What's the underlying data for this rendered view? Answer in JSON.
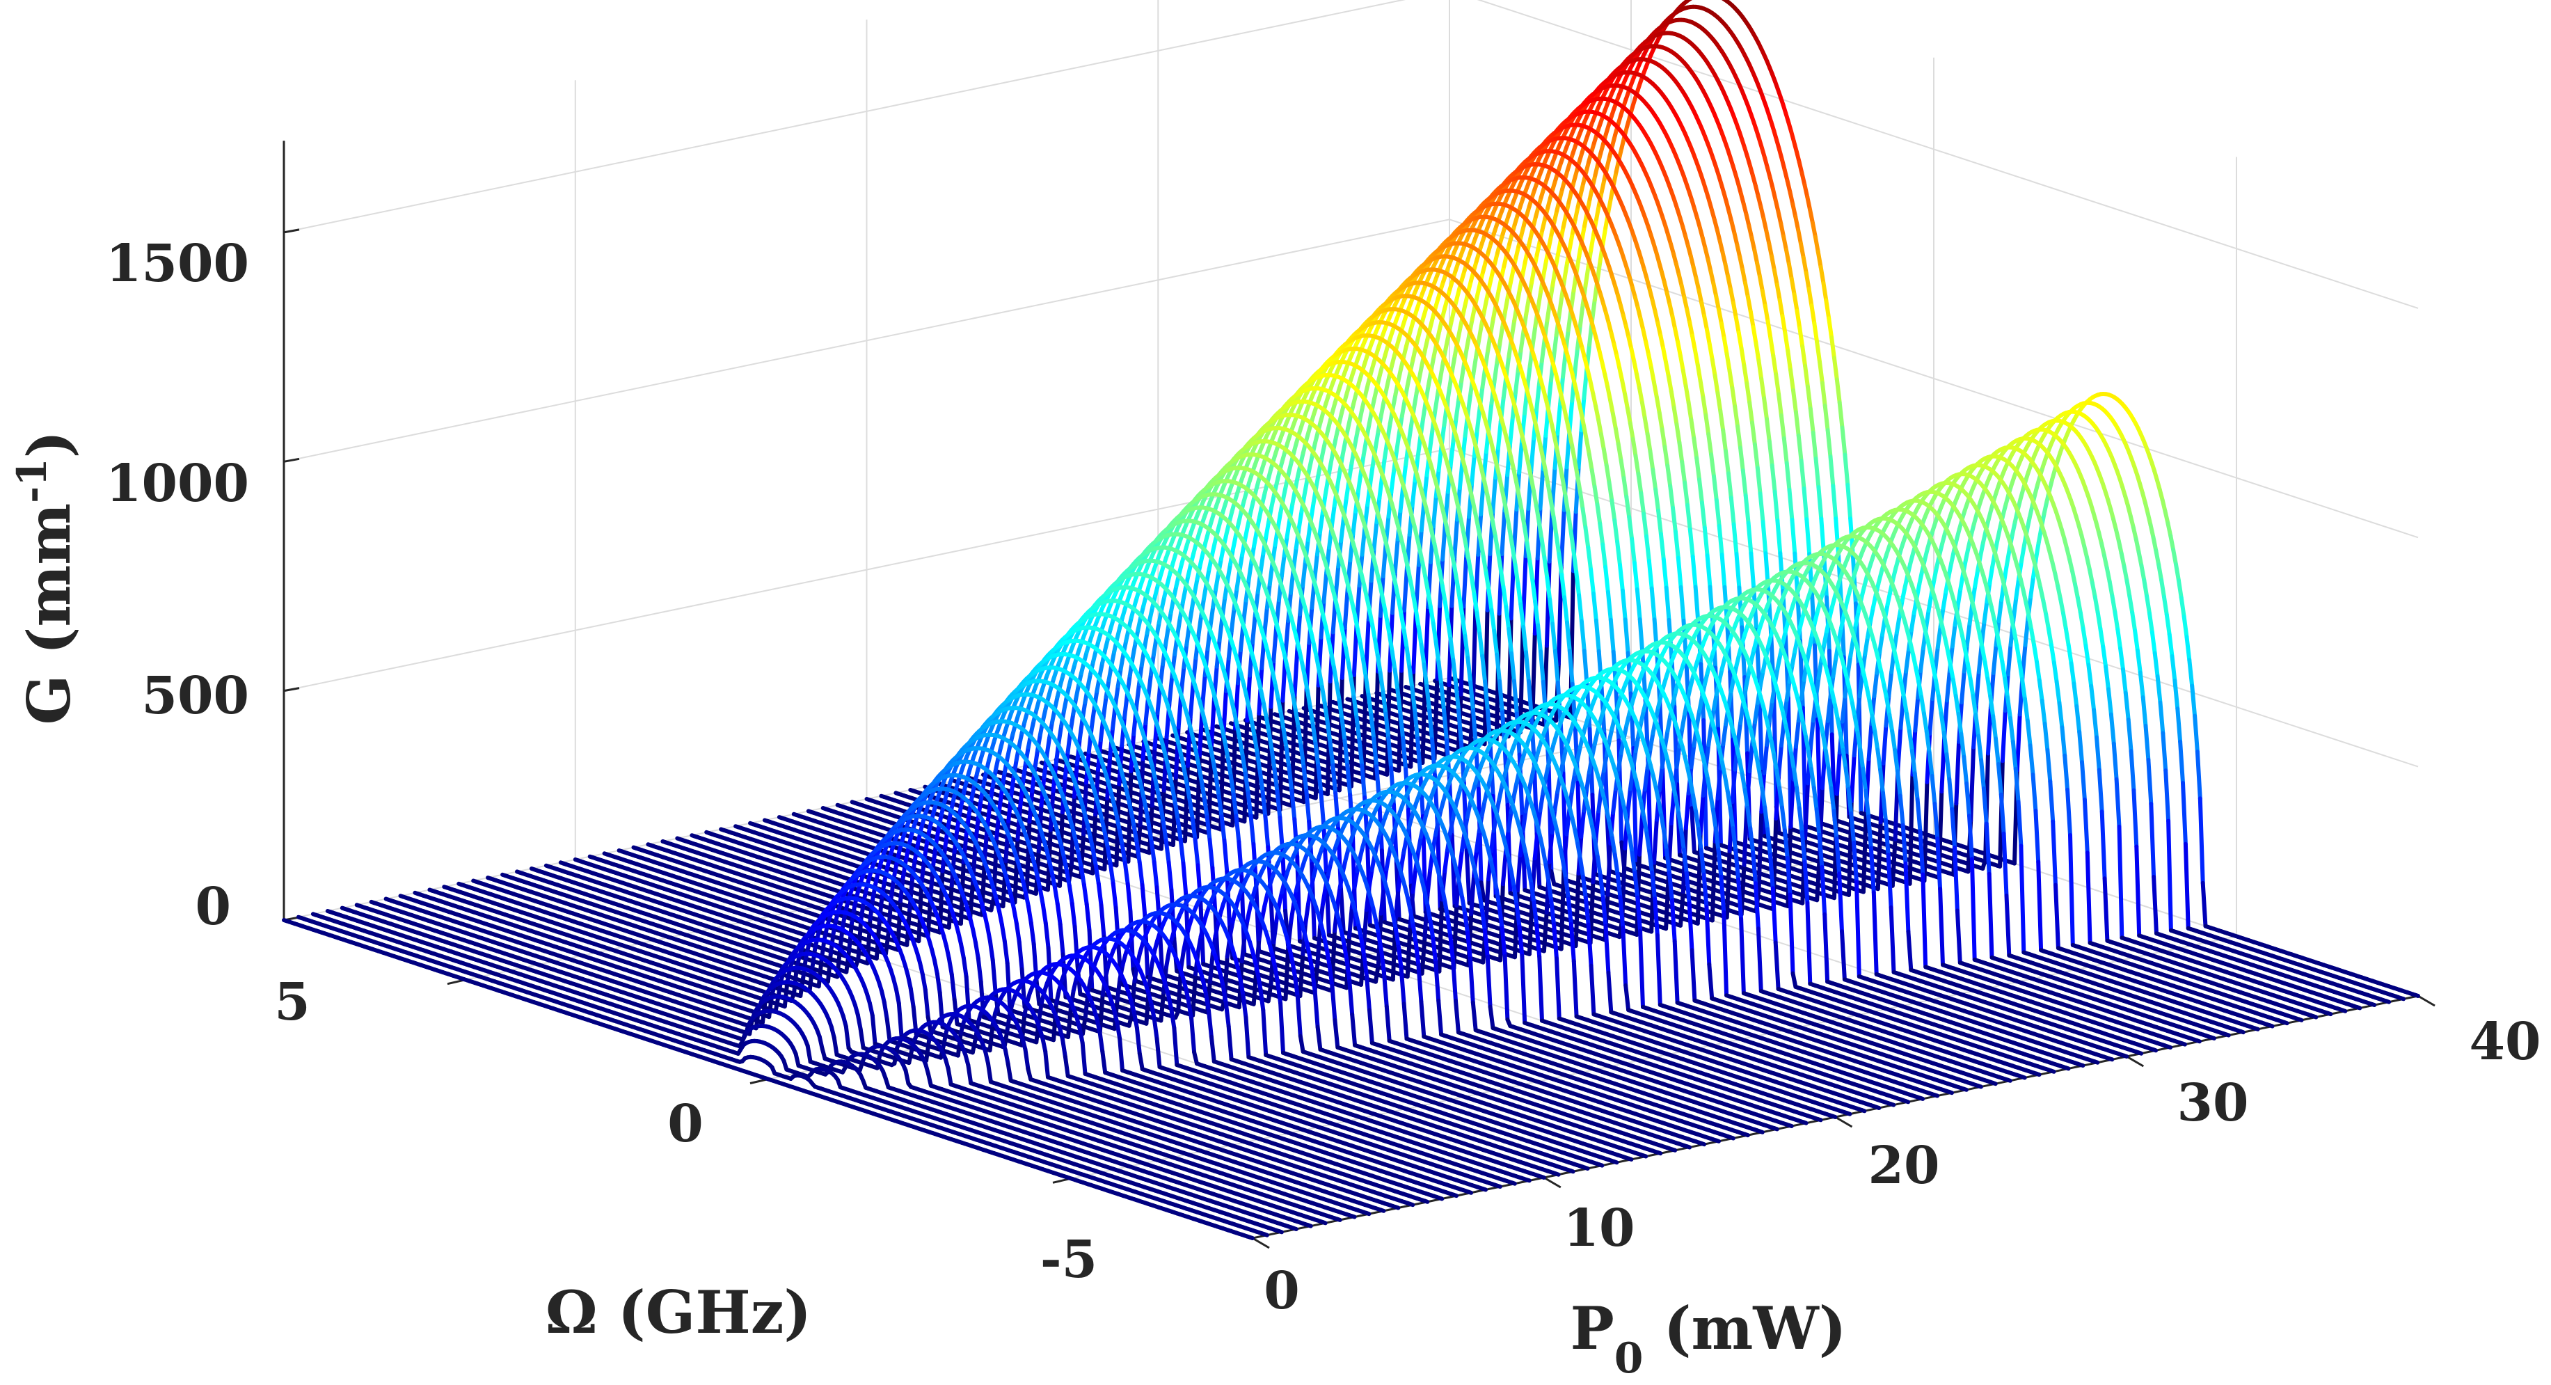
{
  "chart_data": {
    "type": "waterfall-3d",
    "title": "",
    "xlabel": {
      "main": "P",
      "sub": "0",
      "rest": " (mW)"
    },
    "ylabel": "Ω (GHz)",
    "zlabel": {
      "main": "G (mm",
      "sup": "-1",
      "rest": ")"
    },
    "x_ticks": [
      "0",
      "10",
      "20",
      "30",
      "40"
    ],
    "y_ticks": [
      "5",
      "0",
      "-5"
    ],
    "z_ticks": [
      "0",
      "500",
      "1000",
      "1500"
    ],
    "xlim": [
      0,
      40
    ],
    "ylim": [
      -8,
      8
    ],
    "zlim": [
      0,
      1700
    ],
    "grid": true,
    "colormap": "jet",
    "series_power_values_mW": [
      0,
      0.5,
      1,
      1.5,
      2,
      2.5,
      3,
      3.5,
      4,
      4.5,
      5,
      5.5,
      6,
      6.5,
      7,
      7.5,
      8,
      8.5,
      9,
      9.5,
      10,
      10.5,
      11,
      11.5,
      12,
      12.5,
      13,
      13.5,
      14,
      14.5,
      15,
      15.5,
      16,
      16.5,
      17,
      17.5,
      18,
      18.5,
      19,
      19.5,
      20,
      20.5,
      21,
      21.5,
      22,
      22.5,
      23,
      23.5,
      24,
      24.5,
      25,
      25.5,
      26,
      26.5,
      27,
      27.5,
      28,
      28.5,
      29,
      29.5,
      30,
      30.5,
      31,
      31.5,
      32,
      32.5,
      33,
      33.5,
      34,
      34.5,
      35,
      35.5,
      36,
      36.5,
      37,
      37.5,
      38,
      38.5,
      39,
      39.5,
      40
    ],
    "gain_lobes": [
      {
        "name": "positive-frequency lobe",
        "omega_center_at_max_power_GHz": 3.6,
        "half_width_at_max_power_GHz": 2.4,
        "peak_gain_at_max_power": 1680,
        "onset_power_mW": 0
      },
      {
        "name": "negative-frequency lobe",
        "omega_center_at_max_power_GHz": -2.9,
        "half_width_at_max_power_GHz": 1.55,
        "peak_gain_at_max_power": 1090,
        "onset_power_mW": 0
      }
    ],
    "sample_peak_gain": [
      {
        "P_mW": 5,
        "positive_lobe": 210,
        "negative_lobe": 140
      },
      {
        "P_mW": 10,
        "positive_lobe": 420,
        "negative_lobe": 275
      },
      {
        "P_mW": 20,
        "positive_lobe": 840,
        "negative_lobe": 545
      },
      {
        "P_mW": 30,
        "positive_lobe": 1260,
        "negative_lobe": 820
      },
      {
        "P_mW": 40,
        "positive_lobe": 1680,
        "negative_lobe": 1090
      }
    ]
  }
}
